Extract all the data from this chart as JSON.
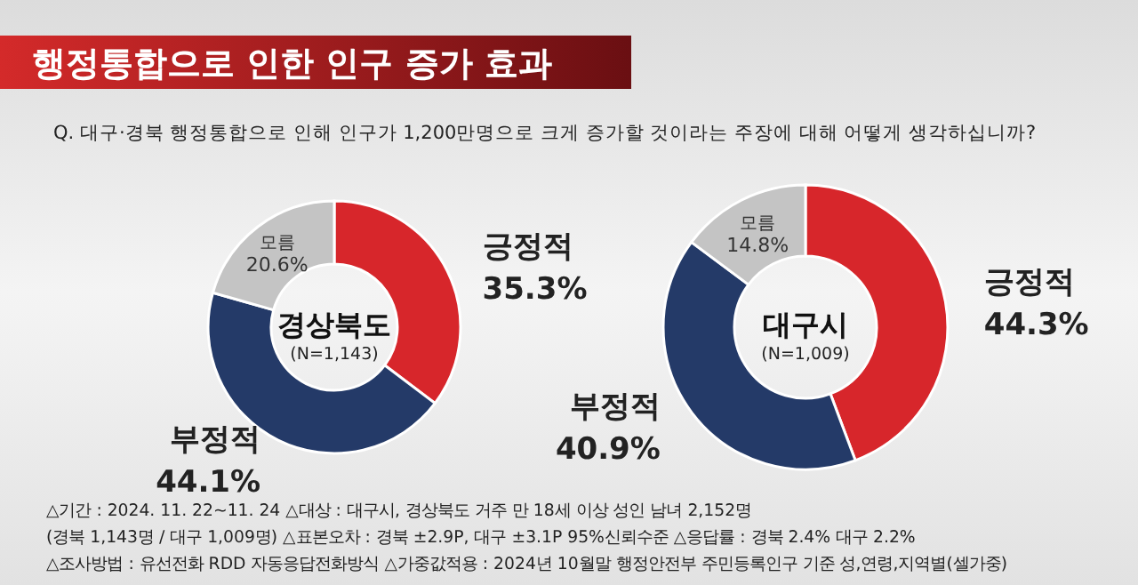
{
  "chart_data": [
    {
      "type": "donut",
      "title": "경상북도",
      "subtitle": "(N=1,143)",
      "categories": [
        "긍정적",
        "부정적",
        "모름"
      ],
      "values": [
        35.3,
        44.1,
        20.6
      ],
      "value_labels": [
        "35.3%",
        "44.1%",
        "20.6%"
      ],
      "colors": [
        "#d7262b",
        "#243a68",
        "#c4c4c4"
      ],
      "annotations": [
        "행정통합으로 인한 인구 증가 효과",
        "Q. 대구·경북 행정통합으로 인해 인구가 1,200만명으로 크게 증가할 것이라는 주장에 대해 어떻게 생각하십니까?"
      ]
    },
    {
      "type": "donut",
      "title": "대구시",
      "subtitle": "(N=1,009)",
      "categories": [
        "긍정적",
        "부정적",
        "모름"
      ],
      "values": [
        44.3,
        40.9,
        14.8
      ],
      "value_labels": [
        "44.3%",
        "40.9%",
        "14.8%"
      ],
      "colors": [
        "#d7262b",
        "#243a68",
        "#c4c4c4"
      ],
      "annotations": [
        "△기간 : 2024. 11. 22~11. 24   △대상 : 대구시, 경상북도 거주 만 18세 이상 성인 남녀 2,152명",
        "(경북 1,143명 / 대구 1,009명)   △표본오차 : 경북 ±2.9P, 대구 ±3.1P 95%신뢰수준   △응답률 : 경북 2.4%   대구 2.2%",
        "△조사방법 : 유선전화 RDD 자동응답전화방식   △가중값적용 : 2024년 10월말 행정안전부 주민등록인구 기준 성,연령,지역별(셀가중)"
      ]
    }
  ]
}
